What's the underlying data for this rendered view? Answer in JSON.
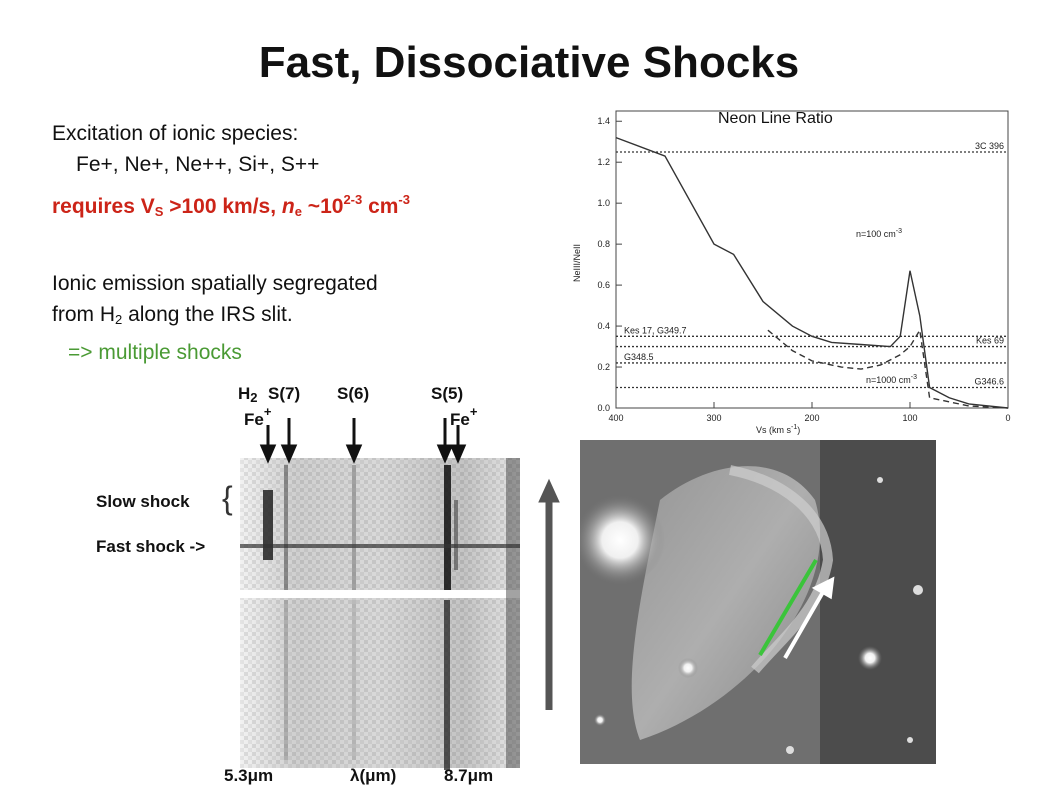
{
  "slide": {
    "title": "Fast, Dissociative Shocks",
    "line1": "Excitation of ionic species:",
    "line2": "Fe+, Ne+, Ne++, Si+, S++",
    "req": {
      "a": "requires V",
      "a_sub": "S",
      "b": " >100 km/s,  ",
      "n": "n",
      "n_sub": "e",
      "c": " ~10",
      "c_sup": "2-3",
      "d": " cm",
      "d_sup": "-3"
    },
    "seg1": "Ionic emission spatially segregated",
    "seg2a": " from H",
    "seg2_sub": "2",
    "seg2b": " along the IRS slit.",
    "multi": "=> multiple shocks"
  },
  "spectrum": {
    "h2a": "H",
    "h2_sub": "2",
    "s7": "S(7)",
    "s6": "S(6)",
    "s5": "S(5)",
    "fe_left": "Fe",
    "fe_right": "Fe",
    "fe_sup": "+",
    "slow": "Slow shock",
    "brace": "{",
    "fast": "Fast shock ->",
    "x_left": "5.3μm",
    "x_mid": "λ(μm)",
    "x_right": "8.7μm"
  },
  "neon_plot": {
    "title": "Neon Line Ratio",
    "ylabel": "NeIII/NeII",
    "xlabel": "Vs (km s",
    "xlabel_sup": "-1",
    "xlabel_end": ")",
    "x_ticks": [
      "400",
      "300",
      "200",
      "100",
      "0"
    ],
    "y_ticks": [
      "0.0",
      "0.2",
      "0.4",
      "0.6",
      "0.8",
      "1.0",
      "1.2",
      "1.4"
    ],
    "curve_label_1": "n=100 cm",
    "curve_label_2": "n=1000 cm",
    "curve_label_sup": "-3",
    "ref_labels": [
      "3C 396",
      "Kes 17, G349.7",
      "Kes 69",
      "G348.5",
      "G346.6"
    ]
  },
  "chart_data": {
    "type": "line",
    "xlim": [
      400,
      0
    ],
    "ylim": [
      0,
      1.45
    ],
    "series": [
      {
        "name": "n=100 cm-3",
        "x": [
          400,
          350,
          300,
          280,
          250,
          220,
          200,
          180,
          150,
          120,
          110,
          100,
          90,
          80,
          60,
          40,
          20,
          0
        ],
        "y": [
          1.32,
          1.23,
          0.8,
          0.75,
          0.52,
          0.4,
          0.35,
          0.32,
          0.31,
          0.3,
          0.35,
          0.67,
          0.45,
          0.1,
          0.05,
          0.02,
          0.01,
          0.0
        ]
      },
      {
        "name": "n=1000 cm-3",
        "x": [
          245,
          220,
          200,
          170,
          150,
          130,
          110,
          100,
          90,
          80,
          60,
          40,
          20,
          0
        ],
        "y": [
          0.38,
          0.28,
          0.23,
          0.2,
          0.19,
          0.21,
          0.26,
          0.3,
          0.38,
          0.05,
          0.03,
          0.01,
          0.005,
          0.0
        ]
      }
    ],
    "reference_levels": [
      {
        "name": "3C 396",
        "y": 1.25
      },
      {
        "name": "Kes 17, G349.7",
        "y": 0.35
      },
      {
        "name": "Kes 69",
        "y": 0.3
      },
      {
        "name": "G348.5",
        "y": 0.22
      },
      {
        "name": "G346.6",
        "y": 0.1
      }
    ]
  }
}
